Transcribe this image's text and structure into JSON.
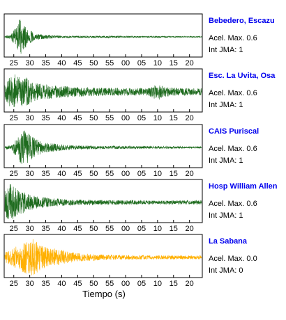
{
  "colors": {
    "station_name": "#0000ee",
    "trace_green": "#1e6b1e",
    "trace_orange": "#ffb000",
    "frame": "#000000"
  },
  "chart_data": {
    "type": "line",
    "title": "",
    "xlabel": "Tiempo (s)",
    "x_tick_labels": [
      "25",
      "30",
      "35",
      "40",
      "45",
      "50",
      "55",
      "00",
      "05",
      "10",
      "15",
      "20"
    ],
    "grid": false,
    "legend": "none",
    "panels": [
      {
        "name": "Bebedero, Escazu",
        "color": "#1e6b1e",
        "acel_label": "Acel. Max. 0.6",
        "jma_label": "Int JMA: 1",
        "envelope": {
          "x": [
            0,
            2,
            3,
            4,
            4.5,
            5,
            5.5,
            6,
            6.5,
            7,
            8,
            9,
            10,
            11,
            13,
            15,
            18,
            20,
            25,
            30,
            35,
            40,
            45,
            50,
            55,
            60
          ],
          "amplitude": [
            0.06,
            0.1,
            0.35,
            0.55,
            0.75,
            0.95,
            0.85,
            0.7,
            0.6,
            0.5,
            0.35,
            0.25,
            0.18,
            0.14,
            0.1,
            0.08,
            0.06,
            0.05,
            0.05,
            0.05,
            0.05,
            0.04,
            0.04,
            0.04,
            0.03,
            0.03
          ]
        }
      },
      {
        "name": "Esc. La Uvita, Osa",
        "color": "#1e6b1e",
        "acel_label": "Acel. Max. 0.6",
        "jma_label": "Int JMA: 1",
        "envelope": {
          "x": [
            0,
            1,
            2,
            3,
            4,
            5,
            6,
            7,
            8,
            9,
            10,
            12,
            15,
            18,
            20,
            25,
            30,
            35,
            40,
            45,
            48,
            50,
            55,
            60
          ],
          "amplitude": [
            0.35,
            0.6,
            0.8,
            0.95,
            0.85,
            0.8,
            0.7,
            0.75,
            0.6,
            0.5,
            0.45,
            0.4,
            0.35,
            0.3,
            0.28,
            0.25,
            0.22,
            0.2,
            0.2,
            0.2,
            0.45,
            0.25,
            0.2,
            0.18
          ]
        }
      },
      {
        "name": "CAIS Puriscal",
        "color": "#1e6b1e",
        "acel_label": "Acel. Max. 0.6",
        "jma_label": "Int JMA: 1",
        "envelope": {
          "x": [
            0,
            2,
            3,
            4,
            5,
            6,
            7,
            8,
            9,
            10,
            12,
            15,
            18,
            20,
            25,
            30,
            35,
            40,
            45,
            50,
            55,
            60
          ],
          "amplitude": [
            0.08,
            0.12,
            0.3,
            0.55,
            0.8,
            0.95,
            0.85,
            0.7,
            0.55,
            0.45,
            0.3,
            0.22,
            0.16,
            0.12,
            0.1,
            0.08,
            0.08,
            0.07,
            0.07,
            0.06,
            0.06,
            0.05
          ]
        }
      },
      {
        "name": "Hosp William Allen",
        "color": "#1e6b1e",
        "acel_label": "Acel. Max. 0.6",
        "jma_label": "Int JMA: 1",
        "envelope": {
          "x": [
            0,
            1,
            2,
            3,
            4,
            5,
            6,
            7,
            8,
            10,
            12,
            15,
            18,
            20,
            25,
            30,
            35,
            40,
            45,
            50,
            55,
            60
          ],
          "amplitude": [
            0.6,
            0.85,
            0.95,
            0.85,
            0.7,
            0.6,
            0.55,
            0.45,
            0.4,
            0.32,
            0.28,
            0.22,
            0.18,
            0.16,
            0.14,
            0.12,
            0.12,
            0.11,
            0.1,
            0.1,
            0.1,
            0.1
          ]
        }
      },
      {
        "name": "La Sabana",
        "color": "#ffb000",
        "acel_label": "Acel. Max. 0.0",
        "jma_label": "Int JMA: 0",
        "envelope": {
          "x": [
            0,
            2,
            4,
            6,
            8,
            9,
            10,
            11,
            12,
            14,
            16,
            18,
            20,
            22,
            25,
            30,
            35,
            40,
            45,
            50,
            55,
            60
          ],
          "amplitude": [
            0.25,
            0.4,
            0.6,
            0.8,
            0.9,
            0.95,
            0.85,
            0.7,
            0.6,
            0.5,
            0.45,
            0.4,
            0.3,
            0.25,
            0.2,
            0.15,
            0.12,
            0.12,
            0.1,
            0.1,
            0.1,
            0.1
          ]
        }
      }
    ]
  }
}
